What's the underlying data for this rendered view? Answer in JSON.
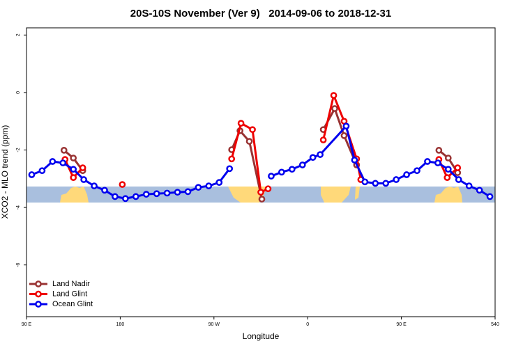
{
  "chart_data": {
    "type": "line",
    "title": "20S-10S November (Ver 9)   2014-09-06 to 2018-12-31",
    "x_label": "Longitude",
    "y_label": "XCO2 - MLO trend (ppm)",
    "xlim": [
      90,
      540
    ],
    "ylim": [
      -7.8,
      2.25
    ],
    "xticks": [
      {
        "value": 90,
        "label": "90 E"
      },
      180,
      {
        "value": 270,
        "label": "90 W"
      },
      {
        "value": 360,
        "label": "0"
      },
      {
        "value": 450,
        "label": "90 E"
      },
      540
    ],
    "yticks": [
      2,
      0,
      -2,
      -4,
      -6
    ],
    "legend": "bottom-left",
    "series": [
      {
        "name": "Land Nadir",
        "color": "#993333",
        "x": [
          126,
          135,
          144,
          null,
          287,
          295,
          304,
          316,
          null,
          375,
          386,
          395,
          407,
          null,
          486,
          495,
          504
        ],
        "values": [
          -2.01,
          -2.28,
          -2.72,
          null,
          -1.99,
          -1.33,
          -1.7,
          -3.71,
          null,
          -1.29,
          -0.56,
          -1.5,
          -2.52,
          null,
          -2.01,
          -2.28,
          -2.79
        ]
      },
      {
        "name": "Land Glint",
        "color": "#ee0000",
        "x": [
          127,
          135,
          144,
          null,
          182,
          null,
          287,
          296,
          307,
          315,
          322,
          null,
          375,
          385,
          395,
          407,
          411,
          null,
          486,
          494,
          504
        ],
        "values": [
          -2.33,
          -2.96,
          -2.62,
          null,
          -3.2,
          null,
          -2.31,
          -1.07,
          -1.29,
          -3.47,
          -3.35,
          null,
          -1.65,
          -0.1,
          -1.0,
          -2.31,
          -3.03,
          null,
          -2.33,
          -2.96,
          -2.62
        ]
      },
      {
        "name": "Ocean Glint",
        "color": "#0000ee",
        "x": [
          95,
          105,
          115,
          125,
          135,
          145,
          155,
          165,
          175,
          185,
          195,
          205,
          215,
          225,
          235,
          245,
          255,
          265,
          275,
          285,
          null,
          325,
          335,
          345,
          355,
          365,
          372,
          397,
          405,
          415,
          425,
          435,
          445,
          455,
          465,
          475,
          485,
          495,
          505,
          515,
          525,
          535
        ],
        "values": [
          -2.86,
          -2.72,
          -2.4,
          -2.45,
          -2.67,
          -3.03,
          -3.25,
          -3.4,
          -3.62,
          -3.69,
          -3.62,
          -3.54,
          -3.52,
          -3.5,
          -3.47,
          -3.45,
          -3.3,
          -3.25,
          -3.13,
          -2.65,
          null,
          -2.91,
          -2.77,
          -2.67,
          -2.52,
          -2.26,
          -2.16,
          -1.17,
          -2.35,
          -3.11,
          -3.16,
          -3.16,
          -3.03,
          -2.86,
          -2.72,
          -2.4,
          -2.45,
          -2.67,
          -3.03,
          -3.25,
          -3.4,
          -3.62
        ]
      }
    ]
  }
}
